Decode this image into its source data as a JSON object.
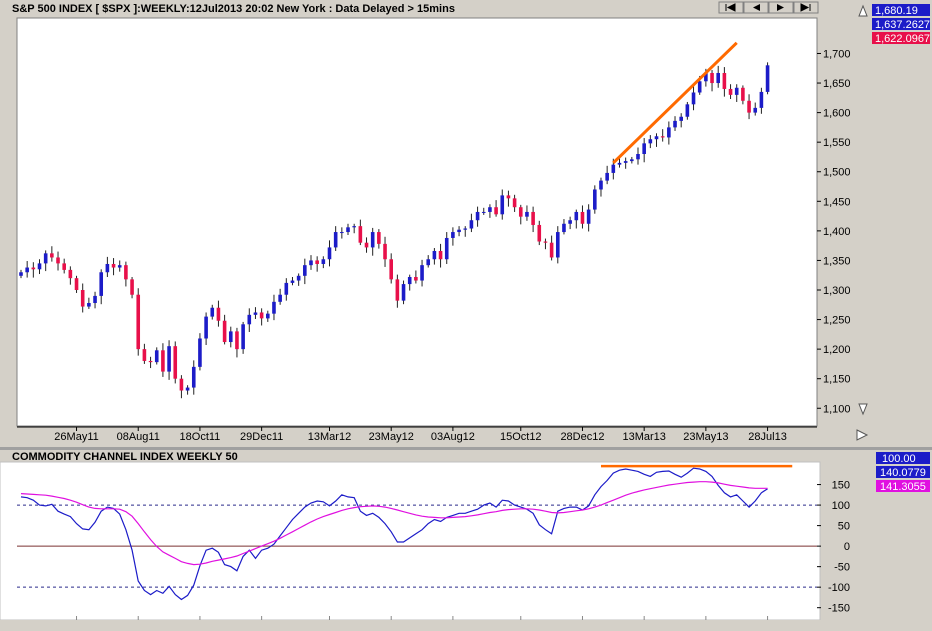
{
  "header": {
    "title": "S&P 500 INDEX [ $SPX ]:WEEKLY:12Jul2013 20:02 New York : Data Delayed > 15mins"
  },
  "nav_buttons": [
    "first",
    "prev",
    "next",
    "last"
  ],
  "price_panel": {
    "readouts": [
      {
        "value": "1,680.19",
        "color": "#1c1cc8"
      },
      {
        "value": "1,637.2627",
        "color": "#1c1cc8"
      },
      {
        "value": "1,622.0967",
        "color": "#e8104a"
      }
    ]
  },
  "indicator_panel": {
    "title": "COMMODITY CHANNEL INDEX WEEKLY 50",
    "readouts": [
      {
        "value": "100.00",
        "color": "#1c1cc8"
      },
      {
        "value": "140.0779",
        "color": "#1c1cc8"
      },
      {
        "value": "141.3055",
        "color": "#e010e0"
      }
    ]
  },
  "colors": {
    "up_candle": "#1c1cc8",
    "down_candle": "#e8104a",
    "trendline": "#ff6a00",
    "cci_line": "#1c1cc8",
    "cci_ma_line": "#e010e0"
  },
  "chart_data": [
    {
      "type": "candlestick",
      "title": "S&P 500 INDEX [ $SPX ]:WEEKLY:12Jul2013 20:02 New York : Data Delayed > 15mins",
      "ylim": [
        1070,
        1760
      ],
      "y_ticks": [
        "1,100",
        "1,150",
        "1,200",
        "1,250",
        "1,300",
        "1,350",
        "1,400",
        "1,450",
        "1,500",
        "1,550",
        "1,600",
        "1,650",
        "1,700"
      ],
      "x_ticks": [
        {
          "label": "26May11",
          "index": 9
        },
        {
          "label": "08Aug11",
          "index": 19
        },
        {
          "label": "18Oct11",
          "index": 29
        },
        {
          "label": "29Dec11",
          "index": 39
        },
        {
          "label": "13Mar12",
          "index": 50
        },
        {
          "label": "23May12",
          "index": 60
        },
        {
          "label": "03Aug12",
          "index": 70
        },
        {
          "label": "15Oct12",
          "index": 81
        },
        {
          "label": "28Dec12",
          "index": 91
        },
        {
          "label": "13Mar13",
          "index": 101
        },
        {
          "label": "23May13",
          "index": 111
        },
        {
          "label": "28Jul13",
          "index": 121
        }
      ],
      "close": [
        1330,
        1338,
        1335,
        1345,
        1362,
        1355,
        1345,
        1334,
        1320,
        1300,
        1272,
        1278,
        1290,
        1330,
        1344,
        1338,
        1342,
        1318,
        1292,
        1200,
        1180,
        1178,
        1198,
        1162,
        1205,
        1150,
        1130,
        1135,
        1170,
        1218,
        1255,
        1270,
        1248,
        1212,
        1230,
        1200,
        1242,
        1258,
        1262,
        1252,
        1260,
        1280,
        1292,
        1312,
        1316,
        1324,
        1342,
        1350,
        1344,
        1352,
        1372,
        1398,
        1398,
        1406,
        1408,
        1380,
        1372,
        1398,
        1378,
        1352,
        1318,
        1282,
        1310,
        1322,
        1316,
        1342,
        1352,
        1366,
        1352,
        1388,
        1398,
        1402,
        1404,
        1418,
        1432,
        1432,
        1440,
        1428,
        1460,
        1455,
        1440,
        1424,
        1432,
        1410,
        1382,
        1380,
        1355,
        1398,
        1412,
        1418,
        1432,
        1412,
        1436,
        1470,
        1485,
        1498,
        1512,
        1515,
        1518,
        1521,
        1530,
        1548,
        1555,
        1560,
        1558,
        1575,
        1586,
        1593,
        1614,
        1634,
        1653,
        1667,
        1650,
        1667,
        1640,
        1630,
        1642,
        1620,
        1600,
        1608,
        1635,
        1680
      ],
      "trendline": [
        {
          "index": 96,
          "price": 1515
        },
        {
          "index": 116,
          "price": 1718
        }
      ]
    },
    {
      "type": "line",
      "title": "COMMODITY CHANNEL INDEX WEEKLY 50",
      "ylim": [
        -180,
        205
      ],
      "y_ticks": [
        150,
        100,
        50,
        0,
        -50,
        -100,
        -150
      ],
      "reference_lines": [
        {
          "value": 100,
          "style": "dashed"
        },
        {
          "value": 0,
          "style": "solid"
        },
        {
          "value": -100,
          "style": "dashed"
        }
      ],
      "resistance_line": {
        "start_index": 94,
        "end_index": 125,
        "value": 195
      },
      "series": [
        {
          "values": [
            120,
            118,
            112,
            100,
            98,
            102,
            85,
            78,
            72,
            55,
            42,
            40,
            58,
            85,
            95,
            92,
            78,
            40,
            -10,
            -85,
            -108,
            -118,
            -108,
            -115,
            -98,
            -118,
            -130,
            -120,
            -95,
            -48,
            -10,
            -5,
            -15,
            -45,
            -50,
            -60,
            -25,
            -10,
            -30,
            -10,
            -5,
            5,
            25,
            45,
            65,
            80,
            95,
            105,
            110,
            108,
            98,
            110,
            125,
            120,
            118,
            85,
            75,
            80,
            70,
            55,
            35,
            10,
            10,
            20,
            30,
            40,
            55,
            65,
            60,
            70,
            75,
            80,
            80,
            85,
            90,
            100,
            105,
            95,
            112,
            110,
            100,
            95,
            90,
            80,
            52,
            40,
            30,
            85,
            92,
            95,
            95,
            88,
            98,
            125,
            145,
            160,
            178,
            185,
            188,
            185,
            182,
            175,
            170,
            180,
            182,
            183,
            175,
            168,
            178,
            190,
            188,
            182,
            170,
            148,
            130,
            120,
            125,
            110,
            95,
            110,
            130,
            140
          ]
        },
        {
          "values": [
            128,
            127,
            126,
            125,
            124,
            122,
            119,
            116,
            112,
            107,
            101,
            95,
            92,
            91,
            91,
            91,
            90,
            84,
            73,
            55,
            35,
            16,
            -1,
            -14,
            -22,
            -30,
            -38,
            -42,
            -45,
            -44,
            -41,
            -37,
            -34,
            -31,
            -28,
            -24,
            -18,
            -12,
            -6,
            0,
            6,
            12,
            19,
            27,
            35,
            43,
            51,
            59,
            66,
            72,
            77,
            82,
            87,
            91,
            94,
            96,
            97,
            98,
            97,
            95,
            92,
            88,
            84,
            80,
            76,
            73,
            71,
            70,
            69,
            69,
            70,
            71,
            72,
            74,
            76,
            79,
            82,
            84,
            87,
            89,
            90,
            91,
            91,
            90,
            88,
            85,
            82,
            81,
            82,
            84,
            86,
            88,
            91,
            95,
            100,
            106,
            112,
            118,
            124,
            129,
            133,
            137,
            140,
            143,
            146,
            149,
            151,
            153,
            155,
            156,
            157,
            157,
            156,
            154,
            151,
            148,
            146,
            144,
            142,
            141,
            141,
            141
          ]
        }
      ]
    }
  ]
}
